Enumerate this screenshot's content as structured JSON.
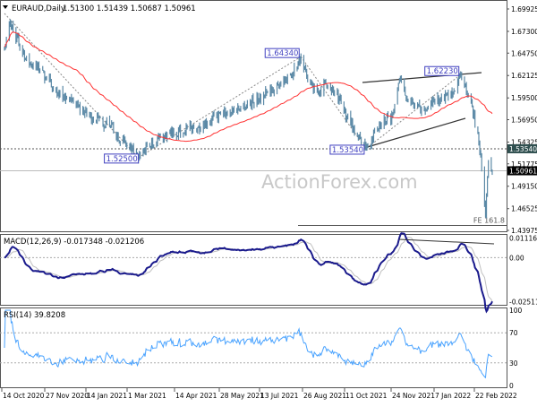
{
  "header": {
    "symbol_label": "EURAUD,Daily",
    "ohlc": "1.51300 1.51439 1.50687 1.50961"
  },
  "watermark": "ActionForex.com",
  "colors": {
    "bars": "#5b89a6",
    "ma": "#ff3030",
    "macd": "#1a1a8c",
    "signal": "#c0c0c0",
    "rsi": "#4aa3ff",
    "label_box": "#4040c0",
    "current_price_bg": "#000000",
    "level_bg": "#2f4f4f"
  },
  "chart_data": [
    {
      "type": "ohlc",
      "title": "EURAUD,Daily",
      "ylim": [
        1.43975,
        1.69925
      ],
      "y_ticks": [
        "1.69925",
        "1.67300",
        "1.64750",
        "1.62125",
        "1.59500",
        "1.56950",
        "1.54325",
        "1.51775",
        "1.49150",
        "1.46525",
        "1.43975"
      ],
      "x_ticks": [
        "14 Oct 2020",
        "27 Nov 2020",
        "14 Jan 2021",
        "1 Mar 2021",
        "14 Apr 2021",
        "28 May 2021",
        "13 Jul 2021",
        "26 Aug 2021",
        "11 Oct 2021",
        "24 Nov 2021",
        "7 Jan 2022",
        "22 Feb 2022"
      ],
      "price_path": [
        [
          "2020-10-14",
          1.655
        ],
        [
          "2020-10-20",
          1.684
        ],
        [
          "2020-11-05",
          1.64
        ],
        [
          "2020-11-20",
          1.628
        ],
        [
          "2020-12-10",
          1.6
        ],
        [
          "2020-12-28",
          1.585
        ],
        [
          "2021-01-14",
          1.572
        ],
        [
          "2021-02-01",
          1.563
        ],
        [
          "2021-02-18",
          1.54
        ],
        [
          "2021-03-03",
          1.525
        ],
        [
          "2021-03-20",
          1.545
        ],
        [
          "2021-04-14",
          1.556
        ],
        [
          "2021-05-05",
          1.562
        ],
        [
          "2021-05-28",
          1.575
        ],
        [
          "2021-06-20",
          1.585
        ],
        [
          "2021-07-13",
          1.598
        ],
        [
          "2021-07-30",
          1.612
        ],
        [
          "2021-08-10",
          1.622
        ],
        [
          "2021-08-20",
          1.6434
        ],
        [
          "2021-08-27",
          1.615
        ],
        [
          "2021-09-05",
          1.6
        ],
        [
          "2021-09-15",
          1.612
        ],
        [
          "2021-09-25",
          1.6
        ],
        [
          "2021-10-11",
          1.565
        ],
        [
          "2021-10-27",
          1.5354
        ],
        [
          "2021-11-10",
          1.565
        ],
        [
          "2021-11-24",
          1.575
        ],
        [
          "2021-12-01",
          1.618
        ],
        [
          "2021-12-10",
          1.59
        ],
        [
          "2021-12-28",
          1.58
        ],
        [
          "2022-01-07",
          1.592
        ],
        [
          "2022-01-25",
          1.598
        ],
        [
          "2022-02-03",
          1.6223
        ],
        [
          "2022-02-15",
          1.585
        ],
        [
          "2022-02-24",
          1.53
        ],
        [
          "2022-03-01",
          1.4583
        ],
        [
          "2022-03-04",
          1.522
        ],
        [
          "2022-03-08",
          1.50961
        ]
      ],
      "moving_average": "red line",
      "levels": [
        {
          "label": "1.53540",
          "price": 1.5354,
          "style": "dashed"
        },
        {
          "label": "1.50961",
          "price": 1.50961,
          "style": "current"
        }
      ],
      "point_labels": [
        {
          "label": "1.52500",
          "date": "2021-03-03",
          "price": 1.525
        },
        {
          "label": "1.64340",
          "date": "2021-08-20",
          "price": 1.6434
        },
        {
          "label": "1.53540",
          "date": "2021-10-27",
          "price": 1.5354
        },
        {
          "label": "1.62230",
          "date": "2022-02-03",
          "price": 1.6223
        }
      ],
      "annotation": {
        "label": "FE 161.8",
        "price": 1.4455
      }
    },
    {
      "type": "line",
      "title": "MACD(12,26,9) -0.017348 -0.021206",
      "y_ticks": [
        "0.011168",
        "0.00",
        "-0.025117"
      ],
      "ylim": [
        -0.0265,
        0.0125
      ]
    },
    {
      "type": "line",
      "title": "RSI(14) 39.8208",
      "y_ticks": [
        "100",
        "70",
        "30",
        "0"
      ],
      "ylim": [
        0,
        100
      ]
    }
  ]
}
